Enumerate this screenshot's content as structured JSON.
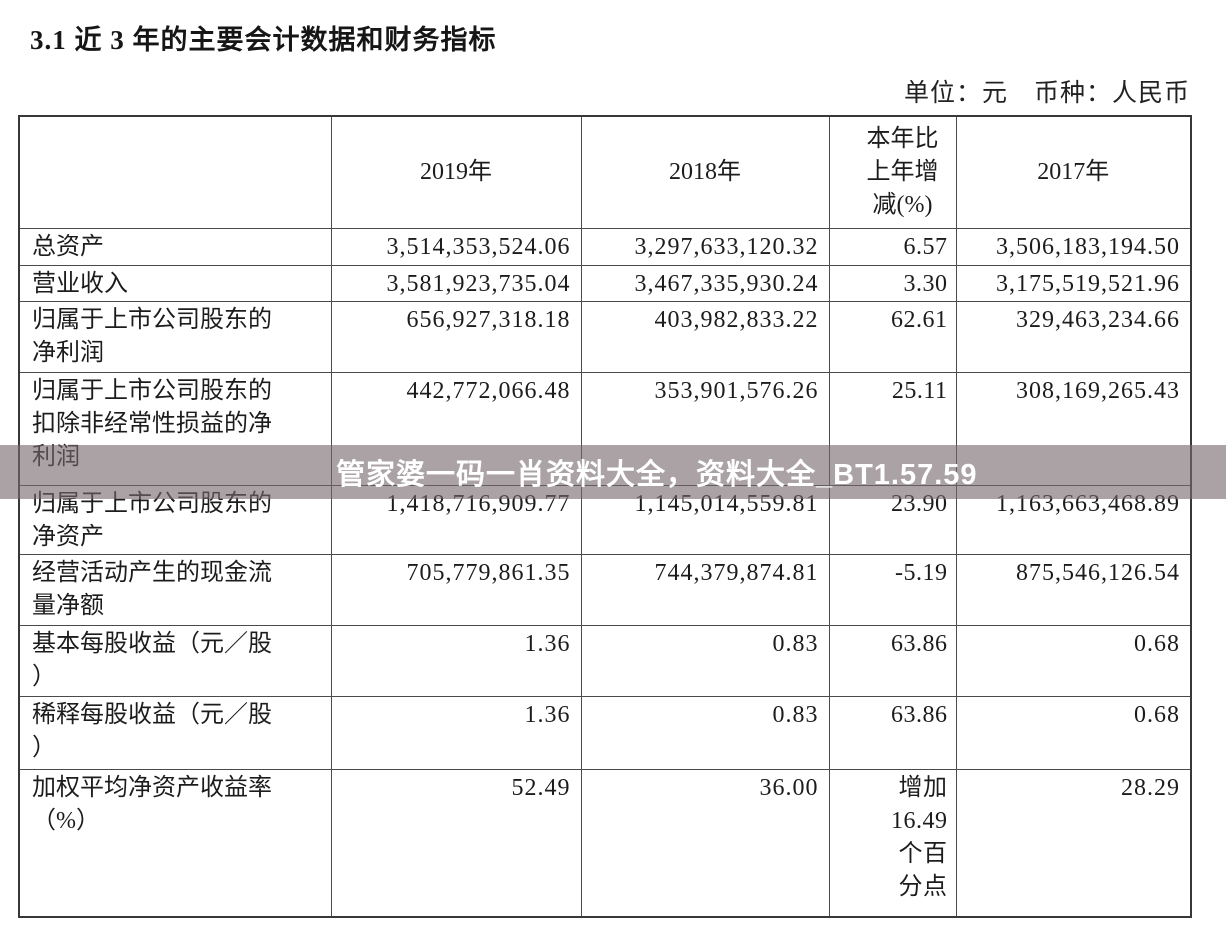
{
  "page": {
    "title": "3.1 近 3 年的主要会计数据和财务指标",
    "unit_note": "单位：元　币种：人民币"
  },
  "watermark": {
    "text": "管家婆一码一肖资料大全，资料大全_BT1.57.59",
    "band_color": "rgba(118,105,108,0.62)",
    "text_color": "#ffffff"
  },
  "chart_data": {
    "type": "table",
    "title": "近3年的主要会计数据和财务指标",
    "columns": [
      "",
      "2019年",
      "2018年",
      "本年比上年增减(%)",
      "2017年"
    ],
    "rows": [
      {
        "label": "总资产",
        "values": [
          "3,514,353,524.06",
          "3,297,633,120.32",
          "6.57",
          "3,506,183,194.50"
        ]
      },
      {
        "label": "营业收入",
        "values": [
          "3,581,923,735.04",
          "3,467,335,930.24",
          "3.30",
          "3,175,519,521.96"
        ]
      },
      {
        "label": "归属于上市公司股东的净利润",
        "values": [
          "656,927,318.18",
          "403,982,833.22",
          "62.61",
          "329,463,234.66"
        ]
      },
      {
        "label": "归属于上市公司股东的扣除非经常性损益的净利润",
        "values": [
          "442,772,066.48",
          "353,901,576.26",
          "25.11",
          "308,169,265.43"
        ]
      },
      {
        "label": "归属于上市公司股东的净资产",
        "values": [
          "1,418,716,909.77",
          "1,145,014,559.81",
          "23.90",
          "1,163,663,468.89"
        ]
      },
      {
        "label": "经营活动产生的现金流量净额",
        "values": [
          "705,779,861.35",
          "744,379,874.81",
          "-5.19",
          "875,546,126.54"
        ]
      },
      {
        "label": "基本每股收益（元／股）",
        "values": [
          "1.36",
          "0.83",
          "63.86",
          "0.68"
        ]
      },
      {
        "label": "稀释每股收益（元／股）",
        "values": [
          "1.36",
          "0.83",
          "63.86",
          "0.68"
        ]
      },
      {
        "label": "加权平均净资产收益率（%）",
        "values": [
          "52.49",
          "36.00",
          "增加16.49个百分点",
          "28.29"
        ]
      }
    ]
  }
}
